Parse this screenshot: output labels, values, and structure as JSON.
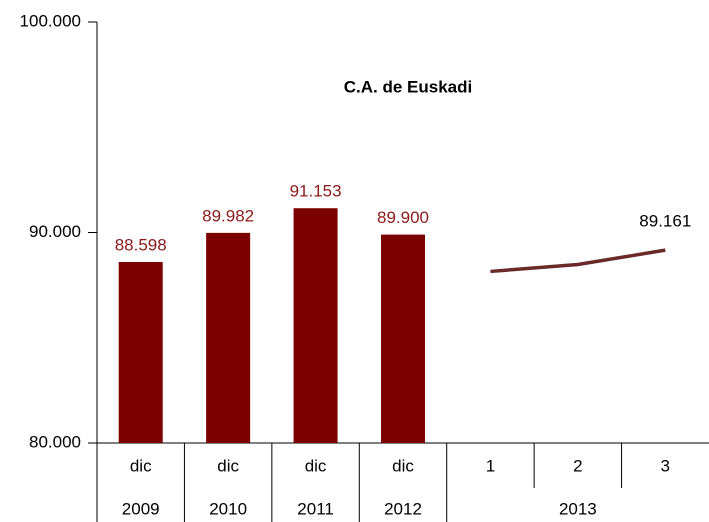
{
  "chart_data": {
    "type": "bar-line",
    "title": "C.A. de Euskadi",
    "groups": [
      {
        "label": "2009",
        "categories": [
          "dic"
        ]
      },
      {
        "label": "2010",
        "categories": [
          "dic"
        ]
      },
      {
        "label": "2011",
        "categories": [
          "dic"
        ]
      },
      {
        "label": "2012",
        "categories": [
          "dic"
        ]
      },
      {
        "label": "2013",
        "categories": [
          "1",
          "2",
          "3"
        ]
      }
    ],
    "ylim": [
      80000,
      100000
    ],
    "yticks": [
      {
        "value": 80000,
        "label": "80.000"
      },
      {
        "value": 90000,
        "label": "90.000"
      },
      {
        "value": 100000,
        "label": "100.000"
      }
    ],
    "series": [
      {
        "type": "bar",
        "color": "#7b0000",
        "label_color": "#8b1a1a",
        "values": [
          88598,
          89982,
          91153,
          89900,
          null,
          null,
          null
        ],
        "value_labels": [
          "88.598",
          "89.982",
          "91.153",
          "89.900",
          null,
          null,
          null
        ]
      },
      {
        "type": "line",
        "color": "#6b2a2a",
        "label_color": "#000000",
        "values": [
          null,
          null,
          null,
          null,
          88150,
          88480,
          89161
        ],
        "value_labels": [
          null,
          null,
          null,
          null,
          null,
          null,
          "89.161"
        ]
      }
    ]
  }
}
